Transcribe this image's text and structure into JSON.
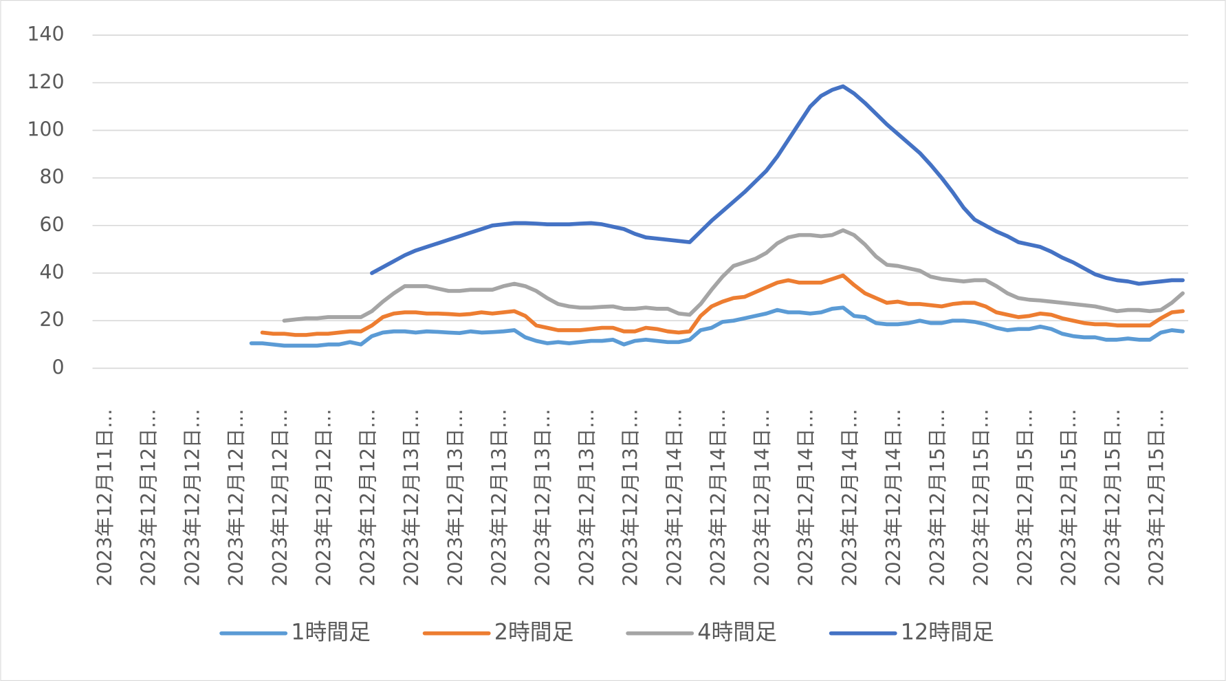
{
  "chart_data": {
    "type": "line",
    "categories": [
      "2023年12月11日…",
      null,
      null,
      null,
      "2023年12月12日…",
      null,
      null,
      null,
      "2023年12月12日…",
      null,
      null,
      null,
      "2023年12月12日…",
      null,
      null,
      null,
      "2023年12月12日…",
      null,
      null,
      null,
      "2023年12月12日…",
      null,
      null,
      null,
      "2023年12月12日…",
      null,
      null,
      null,
      "2023年12月13日…",
      null,
      null,
      null,
      "2023年12月13日…",
      null,
      null,
      null,
      "2023年12月13日…",
      null,
      null,
      null,
      "2023年12月13日…",
      null,
      null,
      null,
      "2023年12月13日…",
      null,
      null,
      null,
      "2023年12月13日…",
      null,
      null,
      null,
      "2023年12月14日…",
      null,
      null,
      null,
      "2023年12月14日…",
      null,
      null,
      null,
      "2023年12月14日…",
      null,
      null,
      null,
      "2023年12月14日…",
      null,
      null,
      null,
      "2023年12月14日…",
      null,
      null,
      null,
      "2023年12月14日…",
      null,
      null,
      null,
      "2023年12月15日…",
      null,
      null,
      null,
      "2023年12月15日…",
      null,
      null,
      null,
      "2023年12月15日…",
      null,
      null,
      null,
      "2023年12月15日…",
      null,
      null,
      null,
      "2023年12月15日…",
      null,
      null,
      null,
      "2023年12月15日…",
      null,
      null,
      null
    ],
    "series": [
      {
        "name": "1時間足",
        "color": "#5b9bd5",
        "values": [
          null,
          null,
          null,
          null,
          null,
          null,
          null,
          null,
          null,
          null,
          null,
          null,
          null,
          null,
          10.5,
          10.5,
          10,
          9.5,
          9.5,
          9.5,
          9.5,
          10,
          10,
          11,
          10,
          13.5,
          15,
          15.5,
          15.5,
          15,
          15.5,
          15.3,
          15,
          14.8,
          15.5,
          15,
          15.2,
          15.5,
          16,
          13,
          11.5,
          10.5,
          11,
          10.5,
          11,
          11.5,
          11.5,
          12,
          10,
          11.5,
          12,
          11.5,
          11,
          11,
          12,
          16,
          17,
          19.5,
          20,
          21,
          22,
          23,
          24.5,
          23.5,
          23.5,
          23,
          23.5,
          25,
          25.5,
          22,
          21.5,
          19,
          18.5,
          18.5,
          19,
          20,
          19,
          19,
          20,
          20,
          19.5,
          18.5,
          17,
          16,
          16.5,
          16.5,
          17.5,
          16.5,
          14.5,
          13.5,
          13,
          13,
          12,
          12,
          12.5,
          12,
          12,
          15,
          16,
          15.5
        ]
      },
      {
        "name": "2時間足",
        "color": "#ed7d31",
        "values": [
          null,
          null,
          null,
          null,
          null,
          null,
          null,
          null,
          null,
          null,
          null,
          null,
          null,
          null,
          null,
          15,
          14.5,
          14.5,
          14,
          14,
          14.5,
          14.5,
          15,
          15.5,
          15.5,
          18,
          21.5,
          23,
          23.5,
          23.5,
          23,
          23,
          22.8,
          22.5,
          22.8,
          23.5,
          23,
          23.5,
          24,
          22,
          18,
          17,
          16,
          16,
          16,
          16.5,
          17,
          17,
          15.5,
          15.5,
          17,
          16.5,
          15.5,
          15,
          15.5,
          22,
          26,
          28,
          29.5,
          30,
          32,
          34,
          36,
          37,
          36,
          36,
          36,
          37.5,
          39,
          35,
          31.5,
          29.5,
          27.5,
          28,
          27,
          27,
          26.5,
          26,
          27,
          27.5,
          27.5,
          26,
          23.5,
          22.5,
          21.5,
          22,
          23,
          22.5,
          21,
          20,
          19,
          18.5,
          18.5,
          18,
          18,
          18,
          18,
          21,
          23.5,
          24
        ]
      },
      {
        "name": "4時間足",
        "color": "#a5a5a5",
        "values": [
          null,
          null,
          null,
          null,
          null,
          null,
          null,
          null,
          null,
          null,
          null,
          null,
          null,
          null,
          null,
          null,
          null,
          20,
          20.5,
          21,
          21,
          21.5,
          21.5,
          21.5,
          21.5,
          24,
          28,
          31.5,
          34.5,
          34.5,
          34.5,
          33.5,
          32.5,
          32.5,
          33,
          33,
          33,
          34.5,
          35.5,
          34.5,
          32.5,
          29.5,
          27,
          26,
          25.5,
          25.5,
          25.8,
          26,
          25,
          25,
          25.5,
          25,
          25,
          23,
          22.5,
          27,
          33,
          38.5,
          43,
          44.5,
          46,
          48.5,
          52.5,
          55,
          56,
          56,
          55.5,
          56,
          58,
          56,
          52,
          47,
          43.5,
          43,
          42,
          41,
          38.5,
          37.5,
          37,
          36.5,
          37,
          37,
          34.5,
          31.5,
          29.5,
          28.8,
          28.5,
          28,
          27.5,
          27,
          26.5,
          26,
          25,
          24,
          24.5,
          24.5,
          24,
          24.5,
          27.5,
          31.5
        ]
      },
      {
        "name": "12時間足",
        "color": "#4472c4",
        "values": [
          null,
          null,
          null,
          null,
          null,
          null,
          null,
          null,
          null,
          null,
          null,
          null,
          null,
          null,
          null,
          null,
          null,
          null,
          null,
          null,
          null,
          null,
          null,
          null,
          null,
          40,
          42.5,
          45,
          47.5,
          49.5,
          51,
          52.5,
          54,
          55.5,
          57,
          58.5,
          60,
          60.5,
          61,
          61,
          60.8,
          60.5,
          60.5,
          60.5,
          60.8,
          61,
          60.5,
          59.5,
          58.5,
          56.5,
          55,
          54.5,
          54,
          53.5,
          53,
          57.5,
          62,
          66,
          70,
          74,
          78.5,
          83,
          89,
          96,
          103,
          110,
          114.5,
          117,
          118.5,
          115.5,
          111.5,
          107,
          102.5,
          98.5,
          94.5,
          90.5,
          85.5,
          80,
          74,
          67.5,
          62.5,
          60,
          57.5,
          55.5,
          53,
          52,
          51,
          49,
          46.5,
          44.5,
          42,
          39.5,
          38,
          37,
          36.5,
          35.5,
          36,
          36.5,
          37,
          37
        ]
      }
    ],
    "ylim": [
      0,
      140
    ],
    "yticks": [
      0,
      20,
      40,
      60,
      80,
      100,
      120,
      140
    ],
    "grid": true,
    "legend": "bottom"
  }
}
